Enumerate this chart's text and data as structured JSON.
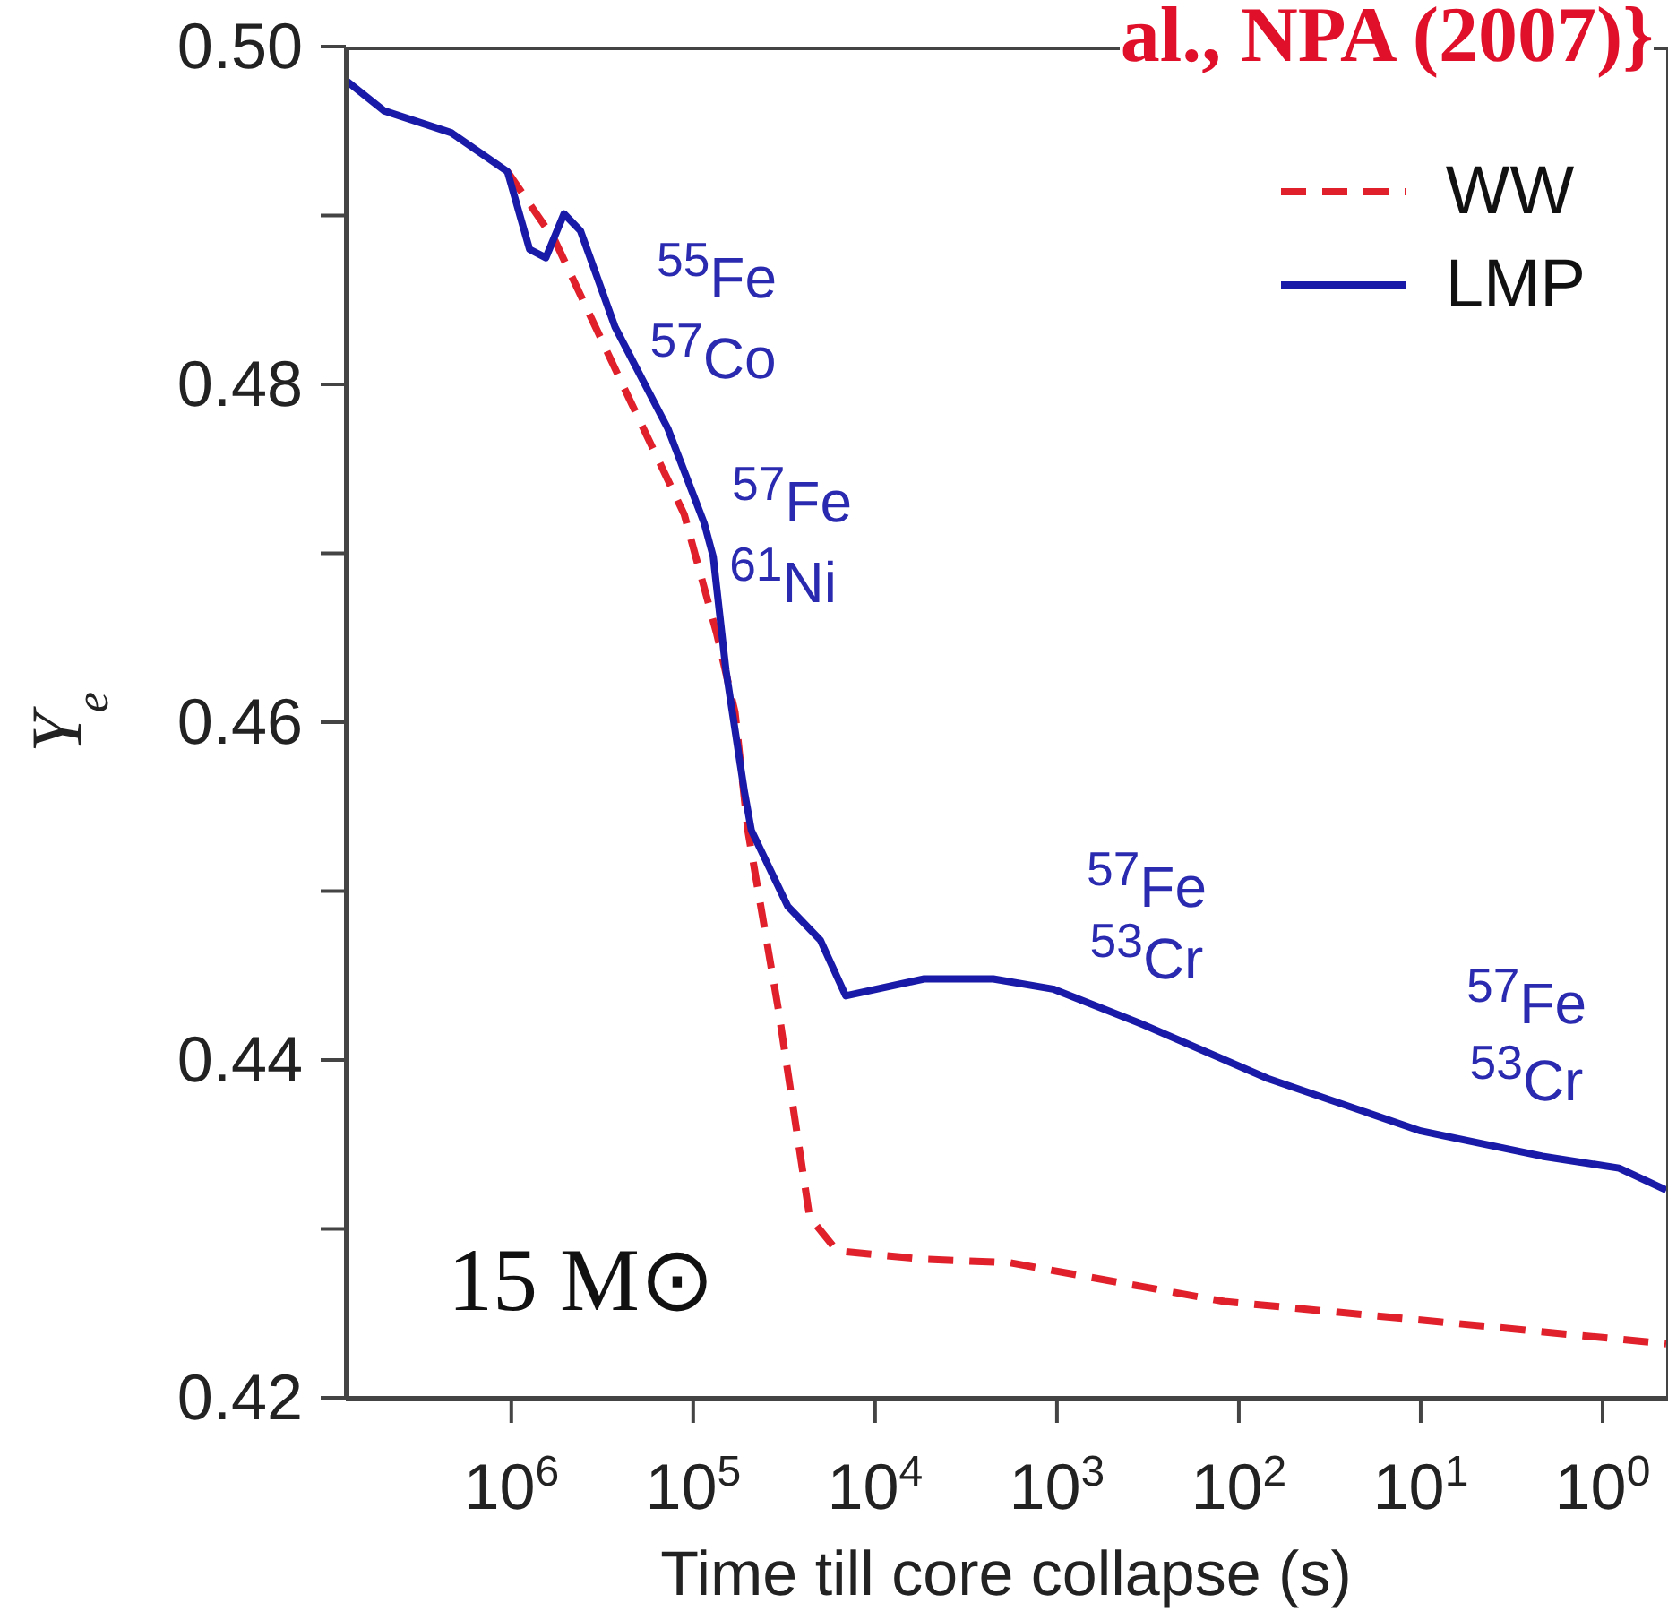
{
  "chart_data": {
    "type": "line",
    "xlabel": "Time till core collapse (s)",
    "ylabel": "Y$_{e}$",
    "annotations": [
      "$^{55}$Fe",
      "$^{57}$Co",
      "$^{57}$Fe",
      "$^{61}$Ni",
      "$^{57}$Fe",
      "$^{53}$Cr",
      "$^{57}$Fe",
      "$^{53}$Cr",
      "15 M⊙",
      "al., NPA (2007)}"
    ],
    "series": [
      {
        "name": "WW",
        "color": "#e0202a",
        "line_style": "dashed",
        "x": [
          1050000,
          575000,
          240000,
          112000,
          74100,
          58900,
          50100,
          33900,
          22900,
          16200,
          5370,
          1820,
          120,
          7.94,
          0.447
        ],
        "values": [
          0.4926,
          0.4885,
          0.4798,
          0.4723,
          0.4652,
          0.4606,
          0.4536,
          0.4429,
          0.4307,
          0.4287,
          0.4282,
          0.428,
          0.4257,
          0.4245,
          0.4232
        ]
      },
      {
        "name": "LMP",
        "color": "#1a1aa8",
        "line_style": "solid",
        "x": [
          8130000,
          5010000,
          2140000,
          1050000,
          794000,
          646000,
          513000,
          417000,
          269000,
          138000,
          87100,
          77600,
          66100,
          52500,
          47900,
          30200,
          20000,
          14500,
          5370,
          2240,
          1050,
          355,
          69.2,
          10,
          2.14,
          0.813,
          0.447
        ],
        "values": [
          0.498,
          0.4962,
          0.4949,
          0.4926,
          0.488,
          0.4875,
          0.4901,
          0.4891,
          0.4834,
          0.4774,
          0.4718,
          0.4698,
          0.4631,
          0.456,
          0.4536,
          0.4491,
          0.4471,
          0.4438,
          0.4448,
          0.4448,
          0.4442,
          0.4422,
          0.4389,
          0.4358,
          0.4343,
          0.4336,
          0.4323
        ]
      }
    ],
    "log": "x",
    "xlim": [
      8130000,
      0.447
    ],
    "xticks": [
      {
        "value": 1000000,
        "label": "10$^{6}$"
      },
      {
        "value": 100000,
        "label": "10$^{5}$"
      },
      {
        "value": 10000,
        "label": "10$^{4}$"
      },
      {
        "value": 1000,
        "label": "10$^{3}$"
      },
      {
        "value": 100,
        "label": "10$^{2}$"
      },
      {
        "value": 10,
        "label": "10$^{1}$"
      },
      {
        "value": 1,
        "label": "10$^{0}$"
      }
    ],
    "ylim": [
      0.42,
      0.5
    ],
    "yticks": [
      {
        "value": 0.42,
        "label": "0.42"
      },
      {
        "value": 0.43,
        "label": null
      },
      {
        "value": 0.44,
        "label": "0.44"
      },
      {
        "value": 0.45,
        "label": null
      },
      {
        "value": 0.46,
        "label": "0.46"
      },
      {
        "value": 0.47,
        "label": null
      },
      {
        "value": 0.48,
        "label": "0.48"
      },
      {
        "value": 0.49,
        "label": null
      },
      {
        "value": 0.5,
        "label": "0.50"
      }
    ],
    "grid": false,
    "legend": "top right",
    "marker": "none"
  }
}
